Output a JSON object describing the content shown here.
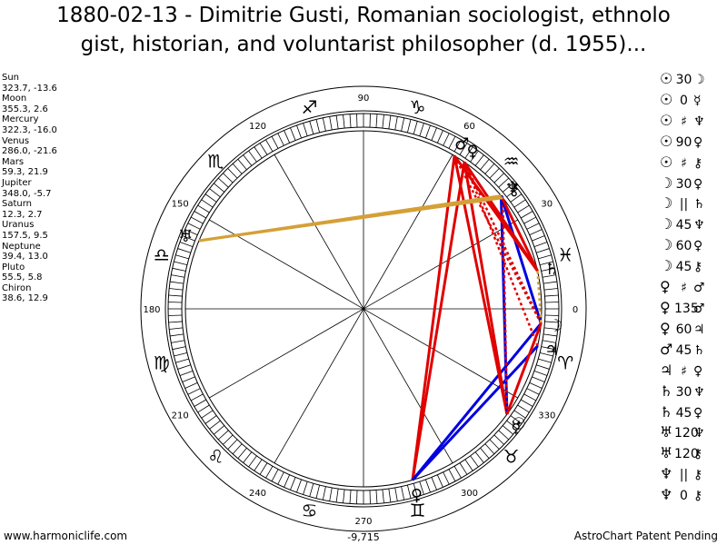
{
  "title": {
    "line1": "1880-02-13 - Dimitrie Gusti, Romanian sociologist, ethnolo",
    "line2": "gist, historian, and voluntarist philosopher (d. 1955)..."
  },
  "positions": [
    {
      "name": "Sun",
      "value": "323.7, -13.6"
    },
    {
      "name": "Moon",
      "value": "355.3, 2.6"
    },
    {
      "name": "Mercury",
      "value": "322.3, -16.0"
    },
    {
      "name": "Venus",
      "value": "286.0, -21.6"
    },
    {
      "name": "Mars",
      "value": "59.3, 21.9"
    },
    {
      "name": "Jupiter",
      "value": "348.0, -5.7"
    },
    {
      "name": "Saturn",
      "value": "12.3, 2.7"
    },
    {
      "name": "Uranus",
      "value": "157.5, 9.5"
    },
    {
      "name": "Neptune",
      "value": "39.4, 13.0"
    },
    {
      "name": "Pluto",
      "value": "55.5, 5.8"
    },
    {
      "name": "Chiron",
      "value": "38.6, 12.9"
    }
  ],
  "aspects": [
    {
      "p1": "☉",
      "asp": "30",
      "p2": "☽",
      "red": false
    },
    {
      "p1": "☉",
      "asp": "0",
      "p2": "☿",
      "red": false
    },
    {
      "p1": "☉",
      "asp": "♯",
      "p2": "♆",
      "red": false
    },
    {
      "p1": "☉",
      "asp": "90",
      "p2": "♀",
      "red": false
    },
    {
      "p1": "☉",
      "asp": "♯",
      "p2": "⚷",
      "red": false
    },
    {
      "p1": "☽",
      "asp": "30",
      "p2": "♀",
      "red": false
    },
    {
      "p1": "☽",
      "asp": "||",
      "p2": "♄",
      "red": false
    },
    {
      "p1": "☽",
      "asp": "45",
      "p2": "♆",
      "red": false
    },
    {
      "p1": "☽",
      "asp": "60",
      "p2": "♀",
      "red": false
    },
    {
      "p1": "☽",
      "asp": "45",
      "p2": "⚷",
      "red": false
    },
    {
      "p1": "♀",
      "asp": "♯",
      "p2": "♂",
      "red": false
    },
    {
      "p1": "♀",
      "asp": "135",
      "p2": "♂",
      "red": false
    },
    {
      "p1": "♀",
      "asp": "60",
      "p2": "♃",
      "red": false
    },
    {
      "p1": "♂",
      "asp": "45",
      "p2": "♄",
      "red": false
    },
    {
      "p1": "♃",
      "asp": "♯",
      "p2": "♀",
      "red": false
    },
    {
      "p1": "♄",
      "asp": "30",
      "p2": "♆",
      "red": false
    },
    {
      "p1": "♄",
      "asp": "45",
      "p2": "♀",
      "red": false
    },
    {
      "p1": "♅",
      "asp": "120",
      "p2": "♆",
      "red": false
    },
    {
      "p1": "♅",
      "asp": "120",
      "p2": "⚷",
      "red": false
    },
    {
      "p1": "♆",
      "asp": "||",
      "p2": "⚷",
      "red": false
    },
    {
      "p1": "♆",
      "asp": "0",
      "p2": "⚷",
      "red": false
    }
  ],
  "wheel": {
    "degree_labels": [
      "0",
      "30",
      "60",
      "90",
      "120",
      "150",
      "180",
      "210",
      "240",
      "270",
      "300",
      "330"
    ],
    "signs": [
      "♓",
      "♒",
      "♑",
      "♐",
      "♏",
      "♎",
      "♍",
      "♌",
      "♋",
      "♊",
      "♉",
      "♈"
    ],
    "planets": [
      {
        "name": "Sun",
        "glyph": "☉",
        "lon": 323.7
      },
      {
        "name": "Moon",
        "glyph": "☽",
        "lon": 355.3
      },
      {
        "name": "Mercury",
        "glyph": "☿",
        "lon": 322.3
      },
      {
        "name": "Venus",
        "glyph": "♀",
        "lon": 286.0
      },
      {
        "name": "Mars",
        "glyph": "♂",
        "lon": 59.3
      },
      {
        "name": "Jupiter",
        "glyph": "♃",
        "lon": 348.0
      },
      {
        "name": "Saturn",
        "glyph": "♄",
        "lon": 12.3
      },
      {
        "name": "Uranus",
        "glyph": "♅",
        "lon": 157.5
      },
      {
        "name": "Neptune",
        "glyph": "♆",
        "lon": 39.4
      },
      {
        "name": "Pluto",
        "glyph": "♀",
        "lon": 55.5
      },
      {
        "name": "Chiron",
        "glyph": "⚷",
        "lon": 38.6
      }
    ],
    "aspect_lines": [
      {
        "a": "Venus",
        "b": "Mars",
        "color": "#e00000",
        "dash": false
      },
      {
        "a": "Venus",
        "b": "Pluto",
        "color": "#e00000",
        "dash": false
      },
      {
        "a": "Venus",
        "b": "Moon",
        "color": "#0000e0",
        "dash": false
      },
      {
        "a": "Venus",
        "b": "Jupiter",
        "color": "#0000e0",
        "dash": false
      },
      {
        "a": "Sun",
        "b": "Mars",
        "color": "#e00000",
        "dash": false
      },
      {
        "a": "Sun",
        "b": "Pluto",
        "color": "#e00000",
        "dash": false
      },
      {
        "a": "Sun",
        "b": "Neptune",
        "color": "#0000e0",
        "dash": false
      },
      {
        "a": "Sun",
        "b": "Chiron",
        "color": "#e00000",
        "dash": true
      },
      {
        "a": "Jupiter",
        "b": "Pluto",
        "color": "#e00000",
        "dash": true
      },
      {
        "a": "Moon",
        "b": "Neptune",
        "color": "#0000e0",
        "dash": false
      },
      {
        "a": "Moon",
        "b": "Pluto",
        "color": "#e00000",
        "dash": true
      },
      {
        "a": "Moon",
        "b": "Mars",
        "color": "#e00000",
        "dash": true
      },
      {
        "a": "Mars",
        "b": "Saturn",
        "color": "#e00000",
        "dash": false
      },
      {
        "a": "Saturn",
        "b": "Neptune",
        "color": "#e00000",
        "dash": false
      },
      {
        "a": "Saturn",
        "b": "Pluto",
        "color": "#e00000",
        "dash": false
      },
      {
        "a": "Neptune",
        "b": "Chiron",
        "color": "#0000e0",
        "dash": false
      },
      {
        "a": "Uranus",
        "b": "Neptune",
        "color": "#d4a037",
        "dash": false
      },
      {
        "a": "Uranus",
        "b": "Chiron",
        "color": "#d4a037",
        "dash": false
      },
      {
        "a": "Sun",
        "b": "Moon",
        "color": "#e00000",
        "dash": false
      },
      {
        "a": "Saturn",
        "b": "Moon",
        "color": "#d4a037",
        "dash": true
      }
    ],
    "center_label": "-9,715"
  },
  "footer": {
    "left": "www.harmoniclife.com",
    "right": "AstroChart Patent Pending"
  }
}
